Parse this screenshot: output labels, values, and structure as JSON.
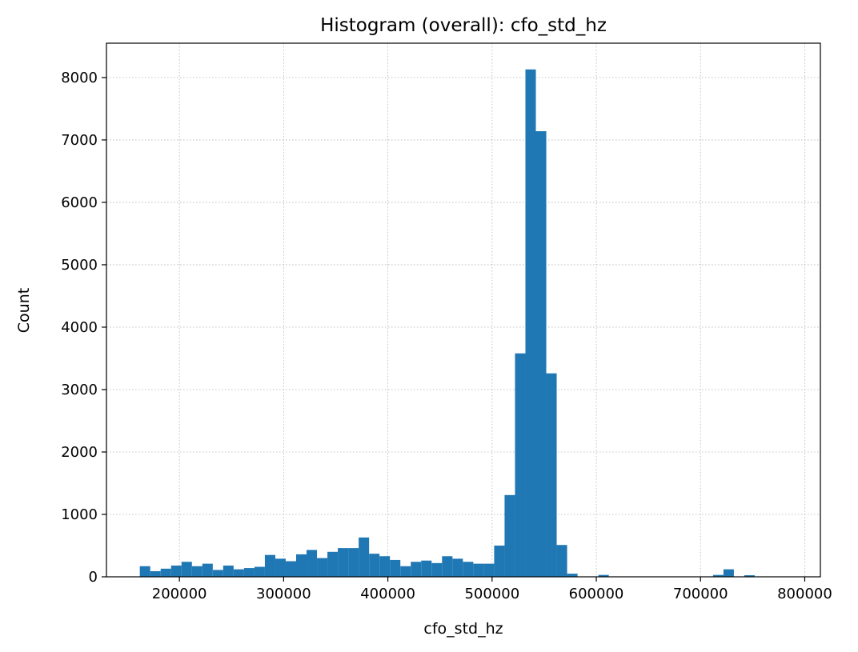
{
  "chart_data": {
    "type": "histogram",
    "title": "Histogram (overall): cfo_std_hz",
    "xlabel": "cfo_std_hz",
    "ylabel": "Count",
    "xlim": [
      130000,
      815000
    ],
    "ylim": [
      0,
      8550
    ],
    "grid": true,
    "bar_color": "#1f77b4",
    "x_ticks": [
      200000,
      300000,
      400000,
      500000,
      600000,
      700000,
      800000
    ],
    "y_ticks": [
      0,
      1000,
      2000,
      3000,
      4000,
      5000,
      6000,
      7000,
      8000
    ],
    "bin_start": 162000,
    "bin_width": 10000,
    "counts": [
      170,
      90,
      130,
      180,
      240,
      170,
      210,
      110,
      180,
      120,
      140,
      160,
      350,
      290,
      250,
      360,
      430,
      300,
      400,
      460,
      460,
      630,
      370,
      330,
      270,
      170,
      240,
      260,
      220,
      330,
      290,
      240,
      210,
      210,
      500,
      1310,
      3580,
      8130,
      7140,
      3260,
      510,
      50,
      0,
      0,
      30,
      0,
      0,
      0,
      0,
      0,
      0,
      0,
      0,
      0,
      0,
      30,
      120,
      0,
      25,
      0,
      0,
      0
    ]
  }
}
